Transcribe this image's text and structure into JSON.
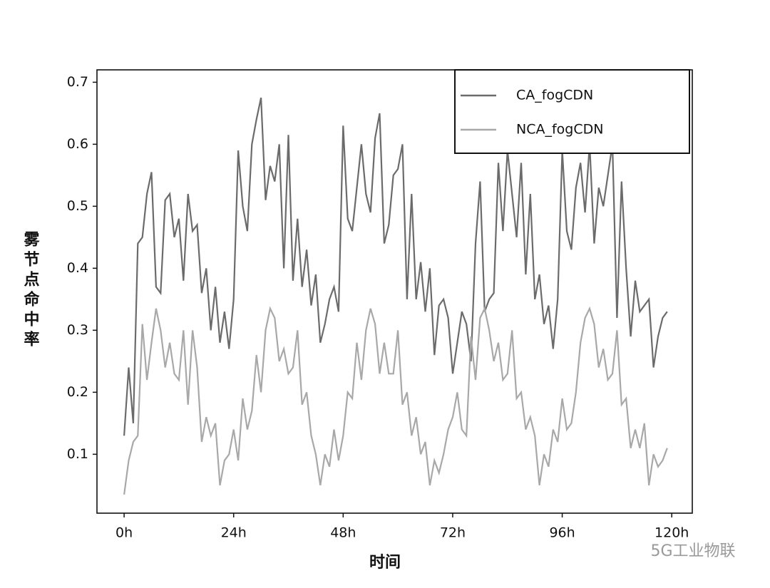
{
  "chart_data": {
    "type": "line",
    "xlabel": "时间",
    "ylabel": "雾节点命中率",
    "watermark": "5G工业物联",
    "legend": "upper right",
    "x": [
      0,
      1,
      2,
      3,
      4,
      5,
      6,
      7,
      8,
      9,
      10,
      11,
      12,
      13,
      14,
      15,
      16,
      17,
      18,
      19,
      20,
      21,
      22,
      23,
      24,
      25,
      26,
      27,
      28,
      29,
      30,
      31,
      32,
      33,
      34,
      35,
      36,
      37,
      38,
      39,
      40,
      41,
      42,
      43,
      44,
      45,
      46,
      47,
      48,
      49,
      50,
      51,
      52,
      53,
      54,
      55,
      56,
      57,
      58,
      59,
      60,
      61,
      62,
      63,
      64,
      65,
      66,
      67,
      68,
      69,
      70,
      71,
      72,
      73,
      74,
      75,
      76,
      77,
      78,
      79,
      80,
      81,
      82,
      83,
      84,
      85,
      86,
      87,
      88,
      89,
      90,
      91,
      92,
      93,
      94,
      95,
      96,
      97,
      98,
      99,
      100,
      101,
      102,
      103,
      104,
      105,
      106,
      107,
      108,
      109,
      110,
      111,
      112,
      113,
      114,
      115,
      116,
      117,
      118,
      119
    ],
    "series": [
      {
        "name": "CA_fogCDN",
        "color": "#6b6b6b",
        "values": [
          0.13,
          0.24,
          0.15,
          0.44,
          0.45,
          0.52,
          0.555,
          0.37,
          0.36,
          0.51,
          0.52,
          0.45,
          0.48,
          0.38,
          0.52,
          0.46,
          0.47,
          0.36,
          0.4,
          0.3,
          0.37,
          0.28,
          0.33,
          0.27,
          0.35,
          0.59,
          0.5,
          0.46,
          0.6,
          0.64,
          0.675,
          0.51,
          0.565,
          0.54,
          0.6,
          0.4,
          0.615,
          0.38,
          0.48,
          0.37,
          0.43,
          0.34,
          0.39,
          0.28,
          0.31,
          0.35,
          0.37,
          0.33,
          0.63,
          0.48,
          0.46,
          0.53,
          0.6,
          0.52,
          0.49,
          0.61,
          0.65,
          0.44,
          0.47,
          0.55,
          0.56,
          0.6,
          0.35,
          0.52,
          0.35,
          0.41,
          0.33,
          0.4,
          0.26,
          0.34,
          0.35,
          0.32,
          0.23,
          0.28,
          0.33,
          0.31,
          0.25,
          0.44,
          0.54,
          0.33,
          0.35,
          0.36,
          0.57,
          0.46,
          0.59,
          0.52,
          0.45,
          0.57,
          0.39,
          0.52,
          0.35,
          0.39,
          0.31,
          0.34,
          0.27,
          0.35,
          0.59,
          0.46,
          0.43,
          0.53,
          0.57,
          0.49,
          0.6,
          0.44,
          0.53,
          0.5,
          0.55,
          0.6,
          0.32,
          0.54,
          0.4,
          0.29,
          0.38,
          0.33,
          0.34,
          0.35,
          0.24,
          0.29,
          0.32,
          0.33
        ]
      },
      {
        "name": "NCA_fogCDN",
        "color": "#a8a8a8",
        "values": [
          0.035,
          0.09,
          0.12,
          0.13,
          0.31,
          0.22,
          0.28,
          0.335,
          0.3,
          0.24,
          0.28,
          0.23,
          0.22,
          0.3,
          0.18,
          0.3,
          0.24,
          0.12,
          0.16,
          0.13,
          0.15,
          0.05,
          0.09,
          0.1,
          0.14,
          0.09,
          0.19,
          0.14,
          0.17,
          0.26,
          0.2,
          0.3,
          0.335,
          0.32,
          0.25,
          0.27,
          0.23,
          0.24,
          0.3,
          0.18,
          0.2,
          0.13,
          0.1,
          0.05,
          0.1,
          0.08,
          0.14,
          0.09,
          0.13,
          0.2,
          0.19,
          0.28,
          0.22,
          0.3,
          0.335,
          0.31,
          0.23,
          0.28,
          0.23,
          0.23,
          0.3,
          0.18,
          0.2,
          0.13,
          0.16,
          0.1,
          0.12,
          0.05,
          0.09,
          0.07,
          0.1,
          0.14,
          0.16,
          0.2,
          0.14,
          0.13,
          0.29,
          0.22,
          0.32,
          0.335,
          0.3,
          0.25,
          0.28,
          0.22,
          0.23,
          0.3,
          0.19,
          0.2,
          0.14,
          0.16,
          0.13,
          0.05,
          0.1,
          0.08,
          0.14,
          0.12,
          0.19,
          0.14,
          0.15,
          0.2,
          0.28,
          0.32,
          0.335,
          0.31,
          0.24,
          0.27,
          0.22,
          0.23,
          0.3,
          0.18,
          0.19,
          0.11,
          0.14,
          0.11,
          0.15,
          0.05,
          0.1,
          0.08,
          0.09,
          0.11
        ]
      }
    ],
    "xlim": [
      -5.95,
      124.5
    ],
    "ylim": [
      0.005,
      0.72
    ],
    "xticks": [
      {
        "value": 0,
        "label": "0h"
      },
      {
        "value": 24,
        "label": "24h"
      },
      {
        "value": 48,
        "label": "48h"
      },
      {
        "value": 72,
        "label": "72h"
      },
      {
        "value": 96,
        "label": "96h"
      },
      {
        "value": 120,
        "label": "120h"
      }
    ],
    "yticks": [
      0.1,
      0.2,
      0.3,
      0.4,
      0.5,
      0.6,
      0.7
    ]
  }
}
